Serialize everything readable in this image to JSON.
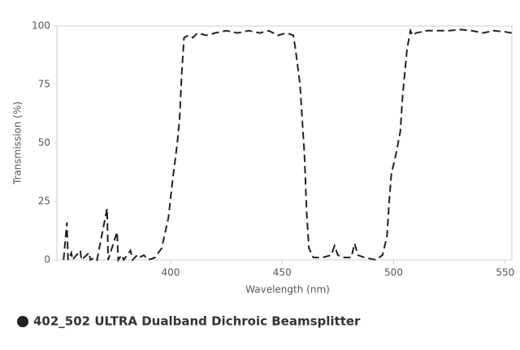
{
  "chart_data": {
    "type": "line",
    "x_label": "Wavelength (nm)",
    "y_label": "Transmission (%)",
    "xlim": [
      349,
      553
    ],
    "ylim": [
      0,
      100
    ],
    "xticks": [
      400,
      450,
      500,
      550
    ],
    "yticks": [
      0,
      25,
      50,
      75,
      100
    ],
    "grid": false,
    "legend": "bottom-left",
    "x": [
      352,
      353.5,
      354,
      355.5,
      356,
      359.5,
      360,
      363.5,
      364,
      366,
      367,
      371.5,
      372,
      376,
      376.5,
      378,
      379,
      382,
      383,
      385,
      386,
      388,
      390,
      393,
      396,
      399,
      401,
      403,
      404,
      405,
      406,
      408,
      410,
      412,
      416,
      420,
      425,
      430,
      435,
      440,
      444,
      448,
      452,
      455,
      456,
      458,
      460,
      461,
      462,
      464,
      468,
      472,
      473.5,
      475,
      478,
      481,
      482.5,
      484,
      487,
      492,
      495,
      497,
      498,
      499,
      501,
      503,
      504,
      506,
      507.5,
      508.5,
      510,
      515,
      520,
      525,
      530,
      535,
      540,
      545,
      550,
      553
    ],
    "series": [
      {
        "name": "402_502 ULTRA Dualband Dichroic Beamsplitter",
        "color": "#222222",
        "values": [
          0,
          16,
          0,
          3,
          0,
          4,
          0,
          3,
          0,
          1,
          0,
          22,
          0,
          12,
          0,
          2,
          0,
          4,
          0,
          2,
          1,
          2,
          0,
          1,
          5,
          18,
          35,
          50,
          60,
          80,
          95,
          96,
          95,
          97,
          96,
          97,
          98,
          97,
          98,
          97,
          98,
          96,
          97,
          96,
          90,
          75,
          45,
          20,
          5,
          1,
          1,
          2,
          6,
          2,
          1,
          1,
          7,
          2,
          1,
          0,
          2,
          10,
          25,
          37,
          45,
          55,
          70,
          90,
          98,
          96,
          97,
          98,
          98,
          98,
          98.5,
          98,
          97,
          98,
          97.5,
          97
        ]
      }
    ]
  }
}
